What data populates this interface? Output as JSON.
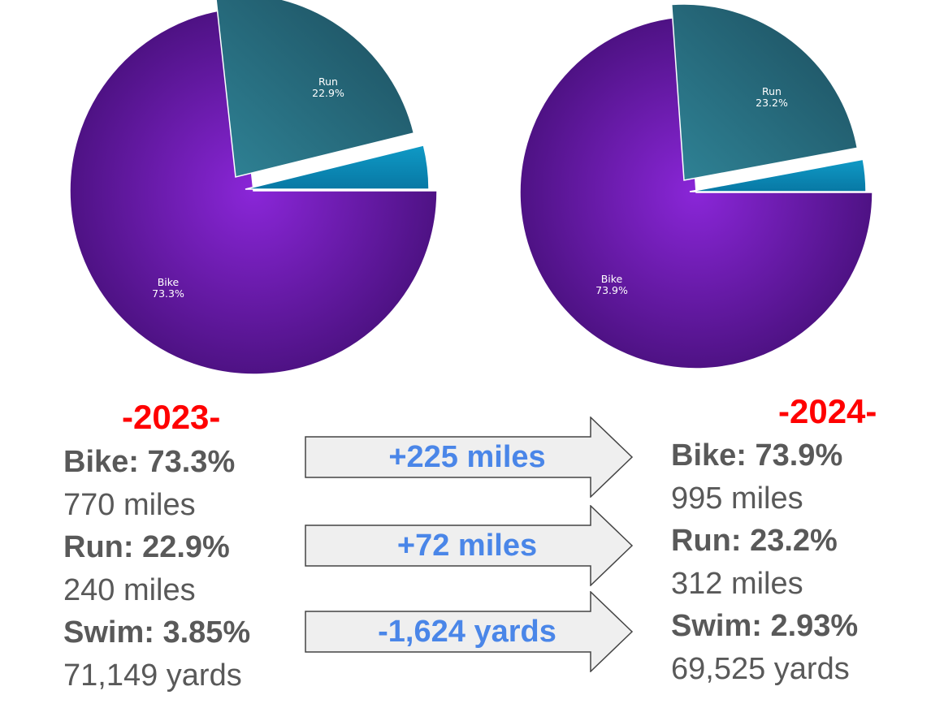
{
  "chart_data": [
    {
      "type": "pie",
      "year_label": "-2023-",
      "slices": [
        {
          "label": "Bike",
          "value": 73.3,
          "display": "73.3%"
        },
        {
          "label": "Run",
          "value": 22.9,
          "display": "22.9%"
        },
        {
          "label": "Swim",
          "value": 3.85,
          "display": ""
        }
      ],
      "colors": {
        "Bike": "#7a1fc7",
        "Run": "#2a6e82",
        "Swim": "#0b89b6"
      }
    },
    {
      "type": "pie",
      "year_label": "-2024-",
      "slices": [
        {
          "label": "Bike",
          "value": 73.9,
          "display": "73.9%"
        },
        {
          "label": "Run",
          "value": 23.2,
          "display": "23.2%"
        },
        {
          "label": "Swim",
          "value": 2.93,
          "display": ""
        }
      ],
      "colors": {
        "Bike": "#7a1fc7",
        "Run": "#2a6e82",
        "Swim": "#0b89b6"
      }
    }
  ],
  "summary": {
    "y2023": {
      "title": "-2023-",
      "bike_pct": "Bike: 73.3%",
      "bike_amt": "770 miles",
      "run_pct": "Run: 22.9%",
      "run_amt": "240 miles",
      "swim_pct": "Swim: 3.85%",
      "swim_amt": "71,149 yards"
    },
    "y2024": {
      "title": "-2024-",
      "bike_pct": "Bike: 73.9%",
      "bike_amt": "995 miles",
      "run_pct": "Run: 23.2%",
      "run_amt": "312 miles",
      "swim_pct": "Swim: 2.93%",
      "swim_amt": "69,525 yards"
    }
  },
  "changes": {
    "bike": "+225 miles",
    "run": "+72 miles",
    "swim": "-1,624 yards"
  },
  "colors": {
    "year_title": "#ff0000",
    "stat_text": "#595959",
    "change_text": "#4a86e8",
    "arrow_fill": "#efefef",
    "arrow_stroke": "#444444"
  }
}
